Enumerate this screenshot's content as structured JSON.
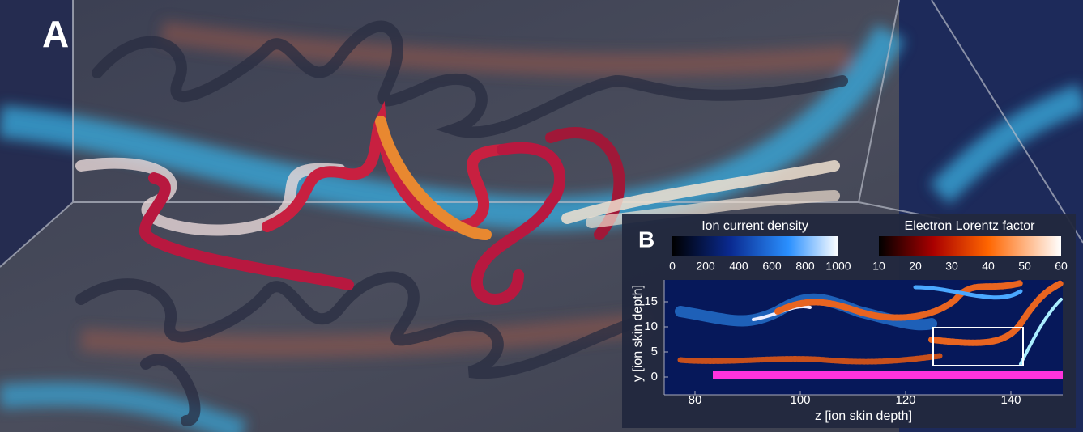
{
  "panel_a": {
    "label": "A"
  },
  "panel_b": {
    "label": "B",
    "colorbars": [
      {
        "title": "Ion current density",
        "ticks": [
          0,
          200,
          400,
          600,
          800,
          1000
        ]
      },
      {
        "title": "Electron Lorentz factor",
        "ticks": [
          10,
          20,
          30,
          40,
          50,
          60
        ]
      }
    ],
    "x_axis": {
      "label": "z [ion skin depth]",
      "ticks": [
        80,
        100,
        120,
        140
      ]
    },
    "y_axis": {
      "label": "y [ion skin depth]",
      "ticks": [
        0,
        5,
        10,
        15
      ]
    }
  }
}
